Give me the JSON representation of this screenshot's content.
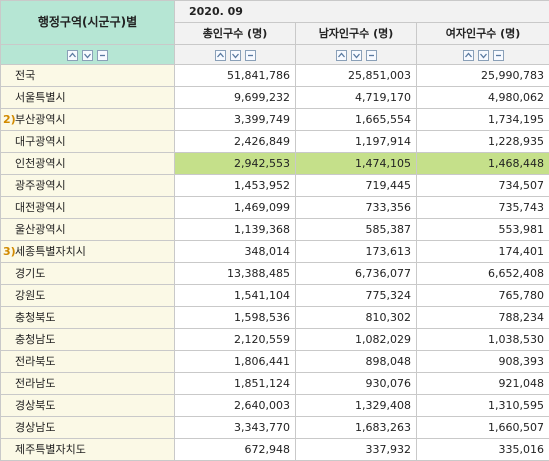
{
  "header": {
    "region_title": "행정구역(시군구)별",
    "period": "2020. 09",
    "columns": [
      "총인구수 (명)",
      "남자인구수 (명)",
      "여자인구수 (명)"
    ]
  },
  "rows": [
    {
      "marker": "",
      "region": "전국",
      "total": "51,841,786",
      "male": "25,851,003",
      "female": "25,990,783"
    },
    {
      "marker": "",
      "region": "서울특별시",
      "total": "9,699,232",
      "male": "4,719,170",
      "female": "4,980,062"
    },
    {
      "marker": "2)",
      "region": "부산광역시",
      "total": "3,399,749",
      "male": "1,665,554",
      "female": "1,734,195"
    },
    {
      "marker": "",
      "region": "대구광역시",
      "total": "2,426,849",
      "male": "1,197,914",
      "female": "1,228,935"
    },
    {
      "marker": "",
      "region": "인천광역시",
      "total": "2,942,553",
      "male": "1,474,105",
      "female": "1,468,448",
      "highlight": true
    },
    {
      "marker": "",
      "region": "광주광역시",
      "total": "1,453,952",
      "male": "719,445",
      "female": "734,507"
    },
    {
      "marker": "",
      "region": "대전광역시",
      "total": "1,469,099",
      "male": "733,356",
      "female": "735,743"
    },
    {
      "marker": "",
      "region": "울산광역시",
      "total": "1,139,368",
      "male": "585,387",
      "female": "553,981"
    },
    {
      "marker": "3)",
      "region": "세종특별자치시",
      "total": "348,014",
      "male": "173,613",
      "female": "174,401"
    },
    {
      "marker": "",
      "region": "경기도",
      "total": "13,388,485",
      "male": "6,736,077",
      "female": "6,652,408"
    },
    {
      "marker": "",
      "region": "강원도",
      "total": "1,541,104",
      "male": "775,324",
      "female": "765,780"
    },
    {
      "marker": "",
      "region": "충청북도",
      "total": "1,598,536",
      "male": "810,302",
      "female": "788,234"
    },
    {
      "marker": "",
      "region": "충청남도",
      "total": "2,120,559",
      "male": "1,082,029",
      "female": "1,038,530"
    },
    {
      "marker": "",
      "region": "전라북도",
      "total": "1,806,441",
      "male": "898,048",
      "female": "908,393"
    },
    {
      "marker": "",
      "region": "전라남도",
      "total": "1,851,124",
      "male": "930,076",
      "female": "921,048"
    },
    {
      "marker": "",
      "region": "경상북도",
      "total": "2,640,003",
      "male": "1,329,408",
      "female": "1,310,595"
    },
    {
      "marker": "",
      "region": "경상남도",
      "total": "3,343,770",
      "male": "1,683,263",
      "female": "1,660,507"
    },
    {
      "marker": "",
      "region": "제주특별자치도",
      "total": "672,948",
      "male": "337,932",
      "female": "335,016"
    }
  ],
  "colors": {
    "header_green": "#b6e6d4",
    "highlight": "#c5e08a",
    "marker": "#d28a00"
  },
  "icons": [
    "sort-up-icon",
    "sort-down-icon",
    "collapse-icon"
  ]
}
